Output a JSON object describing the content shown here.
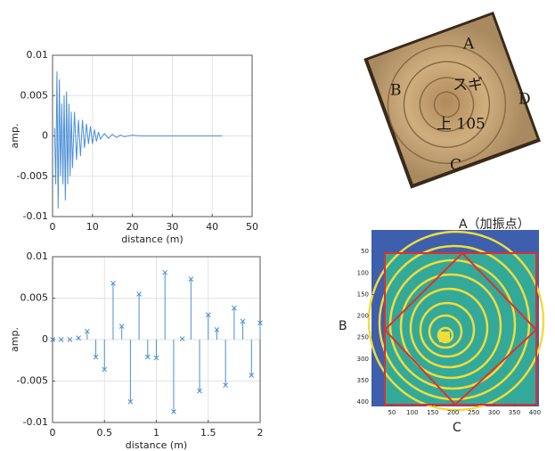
{
  "chart_data": [
    {
      "type": "line",
      "xlabel": "distance (m)",
      "ylabel": "amp.",
      "color": "#4a8fd6",
      "grid": true,
      "x": [
        0.5,
        0.8,
        1.1,
        1.4,
        1.7,
        2.0,
        2.3,
        2.6,
        2.9,
        3.2,
        3.5,
        3.8,
        4.1,
        4.4,
        4.7,
        5.0,
        5.5,
        6,
        6.5,
        7,
        7.5,
        8,
        8.5,
        9,
        9.5,
        10,
        10.5,
        11,
        11.5,
        12,
        13,
        14,
        15,
        16,
        17,
        18,
        20,
        22,
        25,
        30,
        35,
        40,
        42.5
      ],
      "values": [
        0.001,
        -0.006,
        0.008,
        -0.009,
        0.007,
        -0.005,
        0.004,
        -0.006,
        0.005,
        -0.008,
        0.0055,
        -0.006,
        0.004,
        -0.005,
        0.003,
        -0.004,
        0.003,
        -0.003,
        0.002,
        -0.0025,
        0.002,
        -0.0015,
        0.0015,
        -0.001,
        0.0012,
        -0.001,
        0.0008,
        -0.0007,
        0.0005,
        -0.0004,
        0.0003,
        -0.0003,
        0.0002,
        -0.0002,
        0.0001,
        -0.0001,
        0.0001,
        0,
        0,
        0,
        0,
        0,
        0
      ],
      "xlim": [
        0,
        50
      ],
      "xticks": [
        0,
        10,
        20,
        30,
        40,
        50
      ],
      "ylim": [
        -0.01,
        0.01
      ],
      "yticks": [
        -0.01,
        -0.005,
        0,
        0.005,
        0.01
      ]
    },
    {
      "type": "stem",
      "xlabel": "distance (m)",
      "ylabel": "amp.",
      "color": "#4a8fd6",
      "grid": true,
      "x": [
        0,
        0.0833,
        0.1667,
        0.25,
        0.3333,
        0.4167,
        0.5,
        0.5833,
        0.6667,
        0.75,
        0.8333,
        0.9167,
        1,
        1.0833,
        1.1667,
        1.25,
        1.3333,
        1.4167,
        1.5,
        1.5833,
        1.6667,
        1.75,
        1.8333,
        1.9167,
        2
      ],
      "values": [
        0,
        0,
        0,
        0.0002,
        0.001,
        -0.0021,
        -0.0036,
        0.0068,
        0.0016,
        -0.0075,
        0.0055,
        -0.0021,
        -0.0022,
        0.0081,
        -0.0087,
        0.0001,
        0.0073,
        -0.0062,
        0.003,
        0.0012,
        -0.0055,
        0.0038,
        0.0022,
        -0.0043,
        0.002
      ],
      "xlim": [
        0,
        2
      ],
      "xticks": [
        0,
        0.5,
        1,
        1.5,
        2
      ],
      "ylim": [
        -0.01,
        0.01
      ],
      "yticks": [
        -0.01,
        -0.005,
        0,
        0.005,
        0.01
      ]
    },
    {
      "type": "heatmap",
      "xlim": [
        0,
        410
      ],
      "xticks": [
        50,
        100,
        150,
        200,
        250,
        300,
        350,
        400
      ],
      "ylim": [
        0,
        410
      ],
      "yticks": [
        50,
        100,
        150,
        200,
        250,
        300,
        350,
        400
      ],
      "annotations": [
        "A（加振点）",
        "B",
        "C"
      ]
    }
  ],
  "photo": {
    "labels": [
      "A",
      "スギ",
      "B",
      "D",
      "上 105",
      "C"
    ]
  }
}
